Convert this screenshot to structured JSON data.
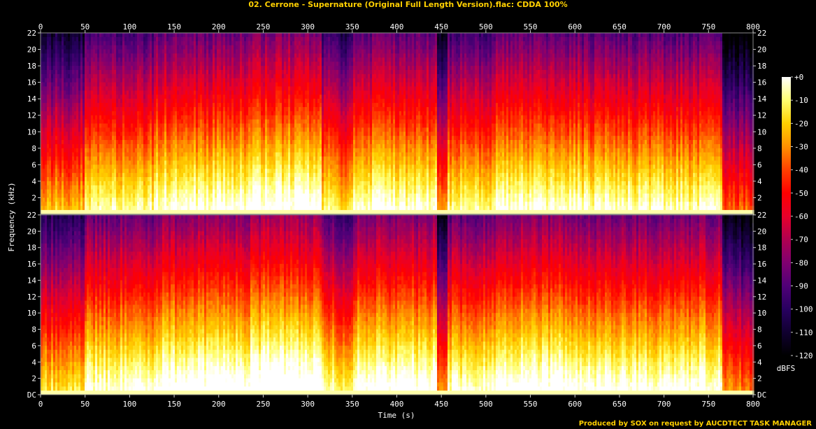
{
  "chart_data": {
    "type": "heatmap",
    "title": "02. Cerrone - Supernature (Original Full Length Version).flac: CDDA 100%",
    "xlabel": "Time (s)",
    "ylabel": "Frequency (kHz)",
    "xlim": [
      0,
      800
    ],
    "ylim": [
      0,
      22
    ],
    "x_ticks": [
      0,
      50,
      100,
      150,
      200,
      250,
      300,
      350,
      400,
      450,
      500,
      550,
      600,
      650,
      700,
      750,
      800
    ],
    "y_ticks_top": [
      "22",
      "20",
      "18",
      "16",
      "14",
      "12",
      "10",
      "8",
      "6",
      "4",
      "2"
    ],
    "y_ticks_bottom": [
      "22",
      "20",
      "18",
      "16",
      "14",
      "12",
      "10",
      "8",
      "6",
      "4",
      "2",
      "DC"
    ],
    "channels": 2,
    "colorbar": {
      "label": "dBFS",
      "range": [
        -120,
        0
      ],
      "ticks": [
        "+0",
        "-10",
        "-20",
        "-30",
        "-40",
        "-50",
        "-60",
        "-70",
        "-80",
        "-90",
        "-100",
        "-110",
        "-120"
      ],
      "colors": [
        "#ffffff",
        "#ffff70",
        "#ffd000",
        "#ff9000",
        "#ff4000",
        "#ff0000",
        "#e8002a",
        "#b00050",
        "#800070",
        "#500078",
        "#280060",
        "#100030",
        "#000000"
      ]
    },
    "sections": [
      {
        "start": 0,
        "end": 48,
        "level": 0.4
      },
      {
        "start": 48,
        "end": 125,
        "level": 0.62
      },
      {
        "start": 125,
        "end": 235,
        "level": 0.72
      },
      {
        "start": 235,
        "end": 315,
        "level": 0.78
      },
      {
        "start": 315,
        "end": 330,
        "level": 0.55
      },
      {
        "start": 330,
        "end": 350,
        "level": 0.48
      },
      {
        "start": 350,
        "end": 445,
        "level": 0.7
      },
      {
        "start": 445,
        "end": 455,
        "level": 0.28
      },
      {
        "start": 455,
        "end": 510,
        "level": 0.6
      },
      {
        "start": 510,
        "end": 605,
        "level": 0.7
      },
      {
        "start": 605,
        "end": 765,
        "level": 0.66
      },
      {
        "start": 765,
        "end": 800,
        "level": 0.18
      }
    ]
  },
  "credit": "Produced by SOX on request by AUCDTECT TASK MANAGER"
}
